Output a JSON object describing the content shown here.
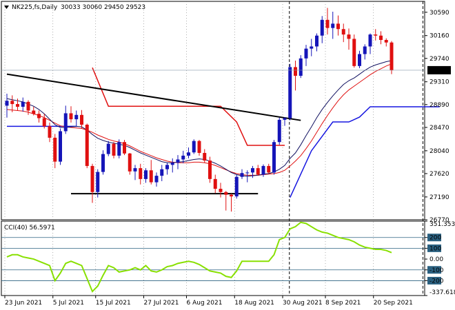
{
  "header": {
    "symbol_label": "NK225,fs,Daily",
    "ohlc": "30033 30060 29450 29523"
  },
  "cci_label": "CCI(40) 56.5971",
  "colors": {
    "bull": "#1515b8",
    "bear": "#e01010",
    "ma_fast": "#101060",
    "ma_slow": "#e01010",
    "ichimoku_red": "#e01010",
    "ichimoku_blue": "#1515e0",
    "trend": "#000000",
    "cci_line": "#88e000",
    "cci_levels": "#2a6080",
    "price_box": "#000000"
  },
  "chart_data": [
    {
      "type": "candlestick",
      "y_ticks": [
        26770,
        27190,
        27620,
        28040,
        28470,
        28890,
        29310,
        29740,
        30160,
        30590
      ],
      "ylim": [
        26770,
        30790
      ],
      "current_price": "29523",
      "x_labels": [
        "23 Jun 2021",
        "5 Jul 2021",
        "15 Jul 2021",
        "27 Jul 2021",
        "6 Aug 2021",
        "18 Aug 2021",
        "30 Aug 2021",
        "8 Sep 2021",
        "20 Sep 2021"
      ],
      "x_label_index": [
        0,
        9,
        17,
        26,
        34,
        43,
        52,
        60,
        69
      ],
      "candles": [
        [
          28870,
          29090,
          28650,
          28960
        ],
        [
          28960,
          29060,
          28750,
          28900
        ],
        [
          28900,
          29000,
          28780,
          28850
        ],
        [
          28850,
          29020,
          28760,
          28940
        ],
        [
          28940,
          28970,
          28700,
          28780
        ],
        [
          28780,
          28850,
          28690,
          28720
        ],
        [
          28720,
          28780,
          28560,
          28640
        ],
        [
          28640,
          28720,
          28450,
          28490
        ],
        [
          28490,
          28560,
          28200,
          28280
        ],
        [
          28280,
          28350,
          27720,
          27840
        ],
        [
          27840,
          28450,
          27780,
          28400
        ],
        [
          28400,
          28870,
          28350,
          28730
        ],
        [
          28730,
          28860,
          28560,
          28620
        ],
        [
          28620,
          28780,
          28480,
          28700
        ],
        [
          28700,
          28790,
          28450,
          28520
        ],
        [
          28520,
          28540,
          27720,
          27760
        ],
        [
          27760,
          27800,
          27080,
          27280
        ],
        [
          27280,
          27700,
          27180,
          27650
        ],
        [
          27650,
          28050,
          27600,
          27980
        ],
        [
          27980,
          28220,
          27940,
          28170
        ],
        [
          28170,
          28200,
          27900,
          27950
        ],
        [
          27950,
          28250,
          27900,
          28200
        ],
        [
          28200,
          28240,
          27960,
          27990
        ],
        [
          27990,
          28000,
          27600,
          27660
        ],
        [
          27660,
          27780,
          27500,
          27720
        ],
        [
          27720,
          27800,
          27420,
          27520
        ],
        [
          27520,
          27720,
          27450,
          27680
        ],
        [
          27680,
          27870,
          27420,
          27460
        ],
        [
          27460,
          27640,
          27380,
          27580
        ],
        [
          27580,
          27780,
          27480,
          27700
        ],
        [
          27700,
          27820,
          27600,
          27780
        ],
        [
          27780,
          27900,
          27640,
          27820
        ],
        [
          27820,
          27960,
          27700,
          27880
        ],
        [
          27880,
          28040,
          27810,
          27950
        ],
        [
          27950,
          28100,
          27900,
          28010
        ],
        [
          28010,
          28250,
          27980,
          28220
        ],
        [
          28220,
          28240,
          27950,
          28000
        ],
        [
          28000,
          28070,
          27820,
          27860
        ],
        [
          27860,
          27930,
          27450,
          27520
        ],
        [
          27520,
          27600,
          27260,
          27340
        ],
        [
          27340,
          27450,
          27180,
          27280
        ],
        [
          27280,
          27300,
          26940,
          27230
        ],
        [
          27230,
          27250,
          26920,
          27200
        ],
        [
          27200,
          27600,
          27160,
          27560
        ],
        [
          27560,
          27700,
          27520,
          27630
        ],
        [
          27630,
          27680,
          27460,
          27640
        ],
        [
          27640,
          27760,
          27540,
          27720
        ],
        [
          27720,
          27780,
          27580,
          27600
        ],
        [
          27600,
          27790,
          27560,
          27760
        ],
        [
          27760,
          27800,
          27620,
          27640
        ],
        [
          27640,
          28240,
          27600,
          28200
        ],
        [
          28200,
          28650,
          28150,
          28610
        ],
        [
          28610,
          28660,
          28500,
          28640
        ],
        [
          28640,
          29640,
          28600,
          29580
        ],
        [
          29580,
          29700,
          29150,
          29420
        ],
        [
          29420,
          29800,
          29380,
          29740
        ],
        [
          29740,
          29990,
          29600,
          29920
        ],
        [
          29920,
          30100,
          29780,
          29960
        ],
        [
          29960,
          30200,
          29870,
          30160
        ],
        [
          30160,
          30520,
          30020,
          30450
        ],
        [
          30450,
          30670,
          30180,
          30300
        ],
        [
          30300,
          30600,
          30100,
          30380
        ],
        [
          30380,
          30530,
          30160,
          30280
        ],
        [
          30280,
          30380,
          30040,
          30180
        ],
        [
          30180,
          30290,
          29900,
          30100
        ],
        [
          30100,
          30180,
          29570,
          29600
        ],
        [
          29600,
          29880,
          29560,
          29820
        ],
        [
          29820,
          30000,
          29720,
          29960
        ],
        [
          29960,
          30200,
          29820,
          30180
        ],
        [
          30180,
          30280,
          30070,
          30160
        ],
        [
          30160,
          30240,
          30000,
          30080
        ],
        [
          30080,
          30110,
          29960,
          30033
        ],
        [
          30033,
          30060,
          29450,
          29523
        ]
      ],
      "ma_fast": [
        29000,
        28980,
        28960,
        28940,
        28900,
        28860,
        28800,
        28720,
        28620,
        28520,
        28470,
        28470,
        28480,
        28490,
        28480,
        28420,
        28340,
        28270,
        28230,
        28200,
        28180,
        28160,
        28140,
        28100,
        28050,
        28000,
        27960,
        27920,
        27880,
        27840,
        27820,
        27820,
        27830,
        27840,
        27860,
        27880,
        27890,
        27880,
        27850,
        27810,
        27760,
        27700,
        27640,
        27600,
        27580,
        27570,
        27580,
        27590,
        27610,
        27620,
        27650,
        27700,
        27770,
        27900,
        28000,
        28150,
        28320,
        28480,
        28650,
        28800,
        28930,
        29050,
        29160,
        29260,
        29330,
        29380,
        29450,
        29520,
        29580,
        29620,
        29650,
        29680,
        29700
      ],
      "ma_slow": [
        28800,
        28790,
        28780,
        28770,
        28750,
        28720,
        28690,
        28650,
        28600,
        28550,
        28500,
        28480,
        28470,
        28460,
        28450,
        28420,
        28380,
        28330,
        28290,
        28250,
        28220,
        28200,
        28170,
        28130,
        28080,
        28030,
        27990,
        27950,
        27910,
        27880,
        27850,
        27830,
        27820,
        27820,
        27820,
        27830,
        27830,
        27820,
        27800,
        27770,
        27730,
        27690,
        27650,
        27620,
        27600,
        27590,
        27590,
        27590,
        27600,
        27610,
        27620,
        27640,
        27680,
        27760,
        27850,
        27950,
        28080,
        28220,
        28380,
        28540,
        28690,
        28830,
        28960,
        29070,
        29160,
        29230,
        29300,
        29370,
        29440,
        29500,
        29550,
        29600,
        29640
      ],
      "ichimoku_red": [
        [
          16,
          29570
        ],
        [
          19,
          28860
        ],
        [
          40,
          28860
        ],
        [
          43,
          28570
        ],
        [
          45,
          28140
        ],
        [
          52,
          28140
        ]
      ],
      "ichimoku_blue_left": [
        [
          0,
          28490
        ],
        [
          13,
          28490
        ]
      ],
      "ichimoku_blue_right": [
        [
          53,
          27180
        ],
        [
          57,
          28040
        ],
        [
          61,
          28570
        ],
        [
          64,
          28570
        ],
        [
          66,
          28660
        ],
        [
          68,
          28850
        ],
        [
          81,
          28850
        ]
      ],
      "trendline_top": [
        [
          0,
          29450
        ],
        [
          55,
          28600
        ]
      ],
      "trendline_bottom": [
        [
          12,
          27250
        ],
        [
          47,
          27250
        ]
      ],
      "future_dashed_index": [
        53,
        78
      ]
    },
    {
      "type": "line",
      "name": "CCI(40)",
      "y_ticks": [
        351.3536,
        200,
        100,
        0.0,
        -100,
        -200,
        -337.6183
      ],
      "y_tick_labels": [
        "351.3536",
        "200",
        "100",
        "0.00",
        "-100",
        "-200",
        "-337.618"
      ],
      "levels": [
        200,
        100,
        -100,
        -200
      ],
      "ylim": [
        -337.6183,
        351.3536
      ],
      "values": [
        20,
        40,
        40,
        20,
        10,
        0,
        -20,
        -40,
        -60,
        -200,
        -130,
        -40,
        -20,
        -40,
        -60,
        -180,
        -300,
        -250,
        -150,
        -60,
        -80,
        -120,
        -110,
        -100,
        -80,
        -100,
        -60,
        -110,
        -120,
        -100,
        -70,
        -60,
        -40,
        -30,
        -20,
        -30,
        -50,
        -80,
        -110,
        -120,
        -130,
        -160,
        -170,
        -110,
        -20,
        -20,
        -20,
        -20,
        -20,
        -20,
        40,
        180,
        200,
        280,
        300,
        340,
        330,
        300,
        270,
        250,
        240,
        220,
        200,
        190,
        180,
        160,
        130,
        110,
        100,
        90,
        90,
        80,
        60
      ]
    }
  ]
}
